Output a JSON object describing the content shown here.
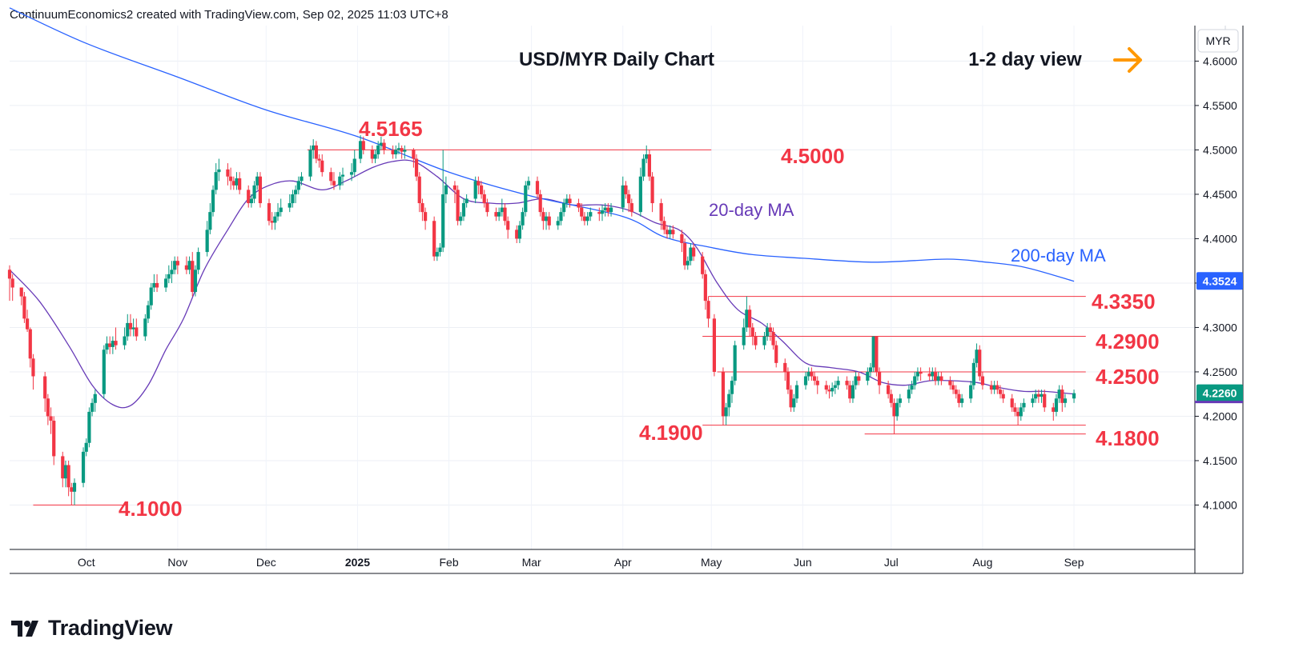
{
  "header": {
    "text": "ContinuumEconomics2 created with TradingView.com, Sep 02, 2025 11:03 UTC+8"
  },
  "brand": {
    "name": "TradingView",
    "logo_icon": "tradingview-logo-icon"
  },
  "colors": {
    "up": "#089981",
    "down": "#f23645",
    "ma20": "#673ab7",
    "ma200": "#2962ff",
    "level_line": "#f23645",
    "arrow": "#ff9800",
    "axis_line": "#131722"
  },
  "chart_data": {
    "type": "candlestick",
    "title": "USD/MYR Daily Chart",
    "view_label": "1-2 day view",
    "view_icon": "arrow-right-icon",
    "currency": "MYR",
    "ylim": [
      4.05,
      4.64
    ],
    "y_ticks": [
      "4.6000",
      "4.5500",
      "4.5000",
      "4.4500",
      "4.4000",
      "4.3500",
      "4.3000",
      "4.2500",
      "4.2000",
      "4.1500",
      "4.1000"
    ],
    "x_ticks": [
      "Oct",
      "Nov",
      "Dec",
      "2025",
      "Feb",
      "Mar",
      "Apr",
      "May",
      "Jun",
      "Jul",
      "Aug",
      "Sep"
    ],
    "x_tick_dates": [
      "2024-10-01",
      "2024-11-01",
      "2024-12-01",
      "2025-01-01",
      "2025-02-01",
      "2025-03-01",
      "2025-04-01",
      "2025-05-01",
      "2025-06-01",
      "2025-07-01",
      "2025-08-01",
      "2025-09-01"
    ],
    "x_range": [
      "2024-09-05",
      "2025-10-12"
    ],
    "last_price": "4.2260",
    "ma200_value": "4.3524",
    "series": [
      {
        "name": "20-day MA",
        "dates": [
          "2024-09-05",
          "2024-09-15",
          "2024-09-25",
          "2024-10-03",
          "2024-10-10",
          "2024-10-16",
          "2024-10-22",
          "2024-10-28",
          "2024-11-03",
          "2024-11-10",
          "2024-11-18",
          "2024-11-25",
          "2024-12-02",
          "2024-12-10",
          "2024-12-20",
          "2024-12-28",
          "2025-01-06",
          "2025-01-13",
          "2025-01-20",
          "2025-01-28",
          "2025-02-06",
          "2025-02-15",
          "2025-02-24",
          "2025-03-05",
          "2025-03-15",
          "2025-03-25",
          "2025-04-03",
          "2025-04-12",
          "2025-04-20",
          "2025-04-26",
          "2025-05-03",
          "2025-05-10",
          "2025-05-18",
          "2025-05-25",
          "2025-06-02",
          "2025-06-10",
          "2025-06-20",
          "2025-06-28",
          "2025-07-06",
          "2025-07-14",
          "2025-07-22",
          "2025-07-30",
          "2025-08-07",
          "2025-08-15",
          "2025-08-22",
          "2025-09-01"
        ],
        "values": [
          4.365,
          4.33,
          4.28,
          4.235,
          4.213,
          4.212,
          4.235,
          4.275,
          4.31,
          4.365,
          4.41,
          4.445,
          4.46,
          4.465,
          4.455,
          4.465,
          4.48,
          4.487,
          4.487,
          4.47,
          4.445,
          4.44,
          4.44,
          4.445,
          4.438,
          4.438,
          4.432,
          4.418,
          4.41,
          4.39,
          4.35,
          4.32,
          4.305,
          4.285,
          4.26,
          4.255,
          4.25,
          4.238,
          4.235,
          4.24,
          4.24,
          4.238,
          4.232,
          4.228,
          4.228,
          4.225
        ]
      },
      {
        "name": "200-day MA",
        "dates": [
          "2024-09-05",
          "2024-10-01",
          "2024-11-01",
          "2024-12-01",
          "2025-01-01",
          "2025-02-01",
          "2025-03-01",
          "2025-04-01",
          "2025-04-15",
          "2025-05-01",
          "2025-05-15",
          "2025-06-01",
          "2025-06-20",
          "2025-07-01",
          "2025-07-20",
          "2025-08-01",
          "2025-08-15",
          "2025-09-01"
        ],
        "values": [
          4.66,
          4.62,
          4.582,
          4.545,
          4.515,
          4.475,
          4.448,
          4.425,
          4.402,
          4.39,
          4.382,
          4.378,
          4.374,
          4.374,
          4.377,
          4.374,
          4.368,
          4.352
        ]
      }
    ],
    "candles_compact": "2024-09-05:4.365,4.355,4.37,4.33;2024-09-06:4.355,4.345,4.36,4.33;2024-09-09:4.345,4.335,4.345,4.325;2024-09-10:4.335,4.31,4.34,4.305;2024-09-11:4.31,4.298,4.32,4.295;2024-09-12:4.298,4.265,4.3,4.255;2024-09-13:4.265,4.245,4.27,4.23;2024-09-17:4.245,4.22,4.25,4.205;2024-09-18:4.22,4.2,4.225,4.19;2024-09-19:4.2,4.195,4.21,4.18;2024-09-20:4.195,4.155,4.2,4.145;2024-09-23:4.155,4.13,4.16,4.12;2024-09-24:4.13,4.145,4.15,4.12;2024-09-25:4.145,4.12,4.15,4.11;2024-09-26:4.12,4.115,4.125,4.1;2024-09-27:4.115,4.125,4.13,4.1;2024-09-30:4.125,4.16,4.165,4.12;2024-10-01:4.16,4.17,4.175,4.155;2024-10-02:4.17,4.205,4.21,4.165;2024-10-03:4.205,4.215,4.22,4.2;2024-10-04:4.215,4.225,4.23,4.205;2024-10-07:4.225,4.275,4.28,4.22;2024-10-08:4.275,4.282,4.29,4.27;2024-10-09:4.282,4.278,4.29,4.27;2024-10-10:4.278,4.285,4.29,4.27;2024-10-11:4.285,4.28,4.3,4.275;2024-10-14:4.28,4.29,4.3,4.275;2024-10-15:4.29,4.305,4.315,4.285;2024-10-16:4.305,4.298,4.315,4.29;2024-10-17:4.298,4.3,4.31,4.29;2024-10-18:4.3,4.29,4.31,4.285;2024-10-21:4.29,4.31,4.315,4.285;2024-10-22:4.31,4.325,4.33,4.305;2024-10-23:4.325,4.345,4.35,4.32;2024-10-24:4.345,4.35,4.36,4.34;2024-10-25:4.35,4.345,4.36,4.34;2024-10-28:4.345,4.355,4.36,4.34;2024-10-29:4.355,4.36,4.37,4.35;2024-10-30:4.36,4.365,4.375,4.35;2024-10-31:4.365,4.375,4.38,4.36;2024-11-01:4.375,4.37,4.38,4.36;2024-11-04:4.37,4.365,4.38,4.36;2024-11-05:4.365,4.375,4.38,4.36;2024-11-06:4.375,4.34,4.385,4.335;2024-11-07:4.34,4.365,4.37,4.335;2024-11-08:4.365,4.385,4.39,4.36;2024-11-11:4.385,4.41,4.42,4.38;2024-11-12:4.41,4.43,4.44,4.405;2024-11-13:4.43,4.455,4.46,4.425;2024-11-14:4.455,4.475,4.485,4.45;2024-11-15:4.475,4.478,4.49,4.465;2024-11-18:4.478,4.47,4.485,4.46;2024-11-19:4.47,4.465,4.48,4.455;2024-11-20:4.465,4.46,4.47,4.455;2024-11-21:4.46,4.468,4.475,4.455;2024-11-22:4.468,4.455,4.475,4.45;2024-11-25:4.455,4.44,4.46,4.435;2024-11-26:4.44,4.445,4.45,4.435;2024-11-27:4.445,4.46,4.465,4.44;2024-11-28:4.46,4.47,4.475,4.455;2024-11-29:4.47,4.44,4.475,4.435;2024-12-02:4.44,4.42,4.445,4.415;2024-12-03:4.42,4.418,4.43,4.41;2024-12-04:4.418,4.425,4.43,4.41;2024-12-05:4.425,4.43,4.44,4.42;2024-12-06:4.43,4.435,4.445,4.425;2024-12-09:4.435,4.44,4.45,4.43;2024-12-10:4.44,4.45,4.455,4.435;2024-12-11:4.45,4.455,4.46,4.44;2024-12-12:4.455,4.465,4.47,4.45;2024-12-13:4.465,4.47,4.475,4.46;2024-12-16:4.47,4.5,4.505,4.465;2024-12-17:4.5,4.505,4.512,4.49;2024-12-18:4.505,4.49,4.51,4.485;2024-12-19:4.49,4.488,4.495,4.48;2024-12-20:4.488,4.475,4.495,4.47;2024-12-23:4.475,4.465,4.48,4.46;2024-12-24:4.465,4.46,4.475,4.455;2024-12-26:4.46,4.47,4.475,4.455;2024-12-27:4.47,4.472,4.48,4.46;2024-12-30:4.472,4.475,4.485,4.465;2024-12-31:4.475,4.49,4.5,4.47;2025-01-02:4.49,4.51,4.5165,4.485;2025-01-03:4.51,4.5,4.515,4.495;2025-01-06:4.5,4.49,4.505,4.485;2025-01-07:4.49,4.495,4.5,4.485;2025-01-08:4.495,4.505,4.51,4.49;2025-01-09:4.505,4.508,4.515,4.5;2025-01-10:4.508,4.5,4.512,4.495;2025-01-13:4.5,4.495,4.505,4.49;2025-01-14:4.495,4.5,4.505,4.49;2025-01-15:4.5,4.502,4.508,4.495;2025-01-16:4.502,4.498,4.505,4.49;2025-01-17:4.498,4.5,4.505,4.49;2025-01-20:4.5,4.49,4.502,4.48;2025-01-21:4.49,4.47,4.495,4.465;2025-01-22:4.47,4.44,4.475,4.43;2025-01-23:4.44,4.43,4.445,4.42;2025-01-24:4.43,4.42,4.435,4.41;2025-01-27:4.42,4.38,4.425,4.375;2025-01-28:4.38,4.385,4.39,4.375;2025-01-29:4.385,4.39,4.395,4.38;2025-01-30:4.39,4.45,4.5,4.385;2025-01-31:4.45,4.46,4.47,4.44;2025-02-03:4.46,4.455,4.465,4.44;2025-02-04:4.455,4.42,4.46,4.415;2025-02-05:4.42,4.425,4.43,4.415;2025-02-06:4.425,4.44,4.445,4.42;2025-02-07:4.44,4.445,4.45,4.435;2025-02-10:4.445,4.465,4.47,4.44;2025-02-11:4.465,4.46,4.47,4.45;2025-02-12:4.46,4.45,4.465,4.445;2025-02-13:4.45,4.44,4.455,4.435;2025-02-14:4.44,4.43,4.445,4.425;2025-02-17:4.43,4.425,4.435,4.42;2025-02-18:4.425,4.43,4.435,4.42;2025-02-19:4.43,4.435,4.445,4.425;2025-02-20:4.435,4.42,4.44,4.415;2025-02-21:4.42,4.41,4.425,4.4;2025-02-24:4.41,4.4,4.415,4.395;2025-02-25:4.4,4.415,4.42,4.395;2025-02-26:4.415,4.43,4.435,4.41;2025-02-27:4.43,4.46,4.465,4.425;2025-02-28:4.46,4.465,4.47,4.455;2025-03-03:4.465,4.45,4.47,4.445;2025-03-04:4.45,4.43,4.455,4.425;2025-03-05:4.43,4.42,4.435,4.41;2025-03-06:4.42,4.425,4.43,4.41;2025-03-07:4.425,4.415,4.43,4.41;2025-03-10:4.415,4.42,4.425,4.41;2025-03-11:4.42,4.43,4.435,4.415;2025-03-12:4.43,4.44,4.445,4.425;2025-03-13:4.44,4.445,4.45,4.435;2025-03-14:4.445,4.44,4.45,4.435;2025-03-17:4.44,4.435,4.445,4.43;2025-03-18:4.435,4.425,4.44,4.42;2025-03-19:4.425,4.42,4.43,4.415;2025-03-20:4.42,4.425,4.43,4.415;2025-03-21:4.425,4.43,4.435,4.42;2025-03-24:4.43,4.428,4.435,4.42;2025-03-25:4.428,4.432,4.438,4.42;2025-03-26:4.432,4.435,4.44,4.425;2025-03-27:4.435,4.43,4.44,4.425;2025-03-28:4.43,4.435,4.44,4.425;2025-04-01:4.435,4.46,4.47,4.43;2025-04-02:4.46,4.45,4.465,4.445;2025-04-03:4.45,4.44,4.455,4.43;2025-04-04:4.44,4.43,4.445,4.425;2025-04-07:4.43,4.47,4.48,4.425;2025-04-08:4.47,4.49,4.495,4.465;2025-04-09:4.49,4.495,4.505,4.485;2025-04-10:4.495,4.47,4.5,4.465;2025-04-11:4.47,4.44,4.475,4.43;2025-04-14:4.44,4.42,4.445,4.41;2025-04-15:4.42,4.41,4.425,4.405;2025-04-16:4.41,4.405,4.415,4.4;2025-04-17:4.405,4.41,4.415,4.4;2025-04-18:4.41,4.405,4.415,4.4;2025-04-21:4.405,4.395,4.41,4.385;2025-04-22:4.395,4.37,4.4,4.365;2025-04-23:4.37,4.375,4.38,4.365;2025-04-24:4.375,4.39,4.395,4.37;2025-04-25:4.39,4.38,4.395,4.375;2025-04-28:4.38,4.36,4.385,4.355;2025-04-29:4.36,4.33,4.365,4.32;2025-04-30:4.33,4.31,4.335,4.3;2025-05-02:4.31,4.25,4.315,4.245;2025-05-05:4.25,4.2,4.255,4.19;2025-05-06:4.2,4.21,4.215,4.19;2025-05-07:4.21,4.225,4.23,4.2;2025-05-08:4.225,4.24,4.245,4.215;2025-05-09:4.24,4.28,4.285,4.235;2025-05-12:4.28,4.3,4.31,4.275;2025-05-13:4.3,4.32,4.335,4.295;2025-05-14:4.32,4.3,4.325,4.29;2025-05-15:4.3,4.29,4.305,4.28;2025-05-16:4.29,4.28,4.295,4.275;2025-05-19:4.28,4.29,4.295,4.275;2025-05-20:4.29,4.3,4.305,4.285;2025-05-21:4.3,4.295,4.305,4.285;2025-05-22:4.295,4.28,4.3,4.275;2025-05-23:4.28,4.26,4.285,4.255;2025-05-26:4.26,4.25,4.265,4.24;2025-05-27:4.25,4.23,4.255,4.225;2025-05-28:4.23,4.21,4.235,4.205;2025-05-29:4.21,4.22,4.225,4.205;2025-05-30:4.22,4.235,4.24,4.215;2025-06-02:4.235,4.245,4.25,4.23;2025-06-03:4.245,4.25,4.255,4.24;2025-06-04:4.25,4.245,4.255,4.24;2025-06-05:4.245,4.24,4.25,4.235;2025-06-06:4.24,4.235,4.245,4.225;2025-06-09:4.235,4.23,4.24,4.225;2025-06-10:4.23,4.228,4.235,4.22;2025-06-11:4.228,4.232,4.238,4.222;2025-06-12:4.232,4.235,4.24,4.225;2025-06-13:4.235,4.24,4.245,4.23;2025-06-16:4.24,4.235,4.245,4.23;2025-06-17:4.235,4.22,4.24,4.215;2025-06-18:4.22,4.235,4.24,4.215;2025-06-19:4.235,4.245,4.25,4.23;2025-06-20:4.245,4.24,4.25,4.235;2025-06-23:4.24,4.25,4.255,4.235;2025-06-24:4.25,4.255,4.26,4.245;2025-06-25:4.255,4.29,4.29,4.25;2025-06-26:4.29,4.25,4.29,4.245;2025-06-27:4.25,4.235,4.255,4.225;2025-06-30:4.235,4.225,4.24,4.22;2025-07-01:4.225,4.215,4.23,4.21;2025-07-02:4.215,4.2,4.22,4.18;2025-07-03:4.2,4.215,4.22,4.195;2025-07-04:4.215,4.22,4.225,4.21;2025-07-07:4.22,4.23,4.235,4.215;2025-07-08:4.23,4.235,4.24,4.225;2025-07-09:4.235,4.245,4.25,4.23;2025-07-10:4.245,4.25,4.255,4.24;2025-07-11:4.25,4.248,4.255,4.24;2025-07-14:4.248,4.245,4.255,4.24;2025-07-15:4.245,4.25,4.255,4.24;2025-07-16:4.25,4.24,4.255,4.235;2025-07-17:4.24,4.245,4.25,4.235;2025-07-18:4.245,4.24,4.25,4.235;2025-07-21:4.24,4.235,4.245,4.23;2025-07-22:4.235,4.23,4.24,4.225;2025-07-23:4.23,4.225,4.235,4.22;2025-07-24:4.225,4.215,4.23,4.21;2025-07-25:4.215,4.22,4.225,4.21;2025-07-28:4.22,4.235,4.24,4.215;2025-07-29:4.235,4.26,4.265,4.23;2025-07-30:4.26,4.275,4.282,4.255;2025-07-31:4.275,4.245,4.28,4.24;2025-08-01:4.245,4.235,4.25,4.23;2025-08-04:4.235,4.23,4.24,4.225;2025-08-05:4.23,4.235,4.24,4.225;2025-08-06:4.235,4.23,4.24,4.225;2025-08-07:4.23,4.225,4.235,4.22;2025-08-08:4.225,4.22,4.23,4.215;2025-08-11:4.22,4.21,4.225,4.205;2025-08-12:4.21,4.205,4.215,4.2;2025-08-13:4.205,4.2,4.21,4.19;2025-08-14:4.2,4.21,4.215,4.195;2025-08-15:4.21,4.215,4.22,4.205;2025-08-18:4.215,4.22,4.225,4.21;2025-08-19:4.22,4.225,4.23,4.215;2025-08-20:4.225,4.222,4.23,4.215;2025-08-21:4.222,4.225,4.23,4.215;2025-08-22:4.225,4.21,4.23,4.205;2025-08-25:4.21,4.205,4.215,4.195;2025-08-26:4.205,4.22,4.225,4.2;2025-08-27:4.22,4.23,4.235,4.215;2025-08-28:4.23,4.215,4.235,4.205;2025-08-29:4.215,4.22,4.225,4.21;2025-09-01:4.22,4.226,4.23,4.215",
    "levels": [
      {
        "value": 4.5,
        "label": "4.5000",
        "from": "2024-12-15",
        "to": "2025-05-01"
      },
      {
        "value": 4.335,
        "label": "4.3350",
        "from": "2025-04-30",
        "to": "2025-09-05"
      },
      {
        "value": 4.29,
        "label": "4.2900",
        "from": "2025-04-28",
        "to": "2025-09-05"
      },
      {
        "value": 4.25,
        "label": "4.2500",
        "from": "2025-05-03",
        "to": "2025-09-05"
      },
      {
        "value": 4.19,
        "label": "4.1900",
        "from": "2025-04-28",
        "to": "2025-09-05"
      },
      {
        "value": 4.18,
        "label": "4.1800",
        "from": "2025-06-22",
        "to": "2025-09-05"
      },
      {
        "value": 4.1,
        "label": "4.1000",
        "from": "2024-09-13",
        "to": "2024-10-15"
      }
    ],
    "peak_label": "4.5165"
  }
}
